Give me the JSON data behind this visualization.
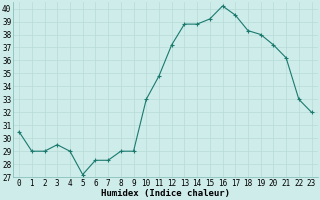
{
  "x": [
    0,
    1,
    2,
    3,
    4,
    5,
    6,
    7,
    8,
    9,
    10,
    11,
    12,
    13,
    14,
    15,
    16,
    17,
    18,
    19,
    20,
    21,
    22,
    23
  ],
  "y": [
    30.5,
    29.0,
    29.0,
    29.5,
    29.0,
    27.2,
    28.3,
    28.3,
    29.0,
    29.0,
    33.0,
    34.8,
    37.2,
    38.8,
    38.8,
    39.2,
    40.2,
    39.5,
    38.3,
    38.0,
    37.2,
    36.2,
    33.0,
    32.0
  ],
  "xlabel": "Humidex (Indice chaleur)",
  "xlim": [
    -0.5,
    23.5
  ],
  "ylim": [
    27,
    40.5
  ],
  "yticks": [
    27,
    28,
    29,
    30,
    31,
    32,
    33,
    34,
    35,
    36,
    37,
    38,
    39,
    40
  ],
  "xticks": [
    0,
    1,
    2,
    3,
    4,
    5,
    6,
    7,
    8,
    9,
    10,
    11,
    12,
    13,
    14,
    15,
    16,
    17,
    18,
    19,
    20,
    21,
    22,
    23
  ],
  "line_color": "#1a7a6e",
  "marker_color": "#1a7a6e",
  "bg_color": "#ceecea",
  "grid_color": "#b8dbd8",
  "tick_fontsize": 5.5,
  "label_fontsize": 6.5
}
